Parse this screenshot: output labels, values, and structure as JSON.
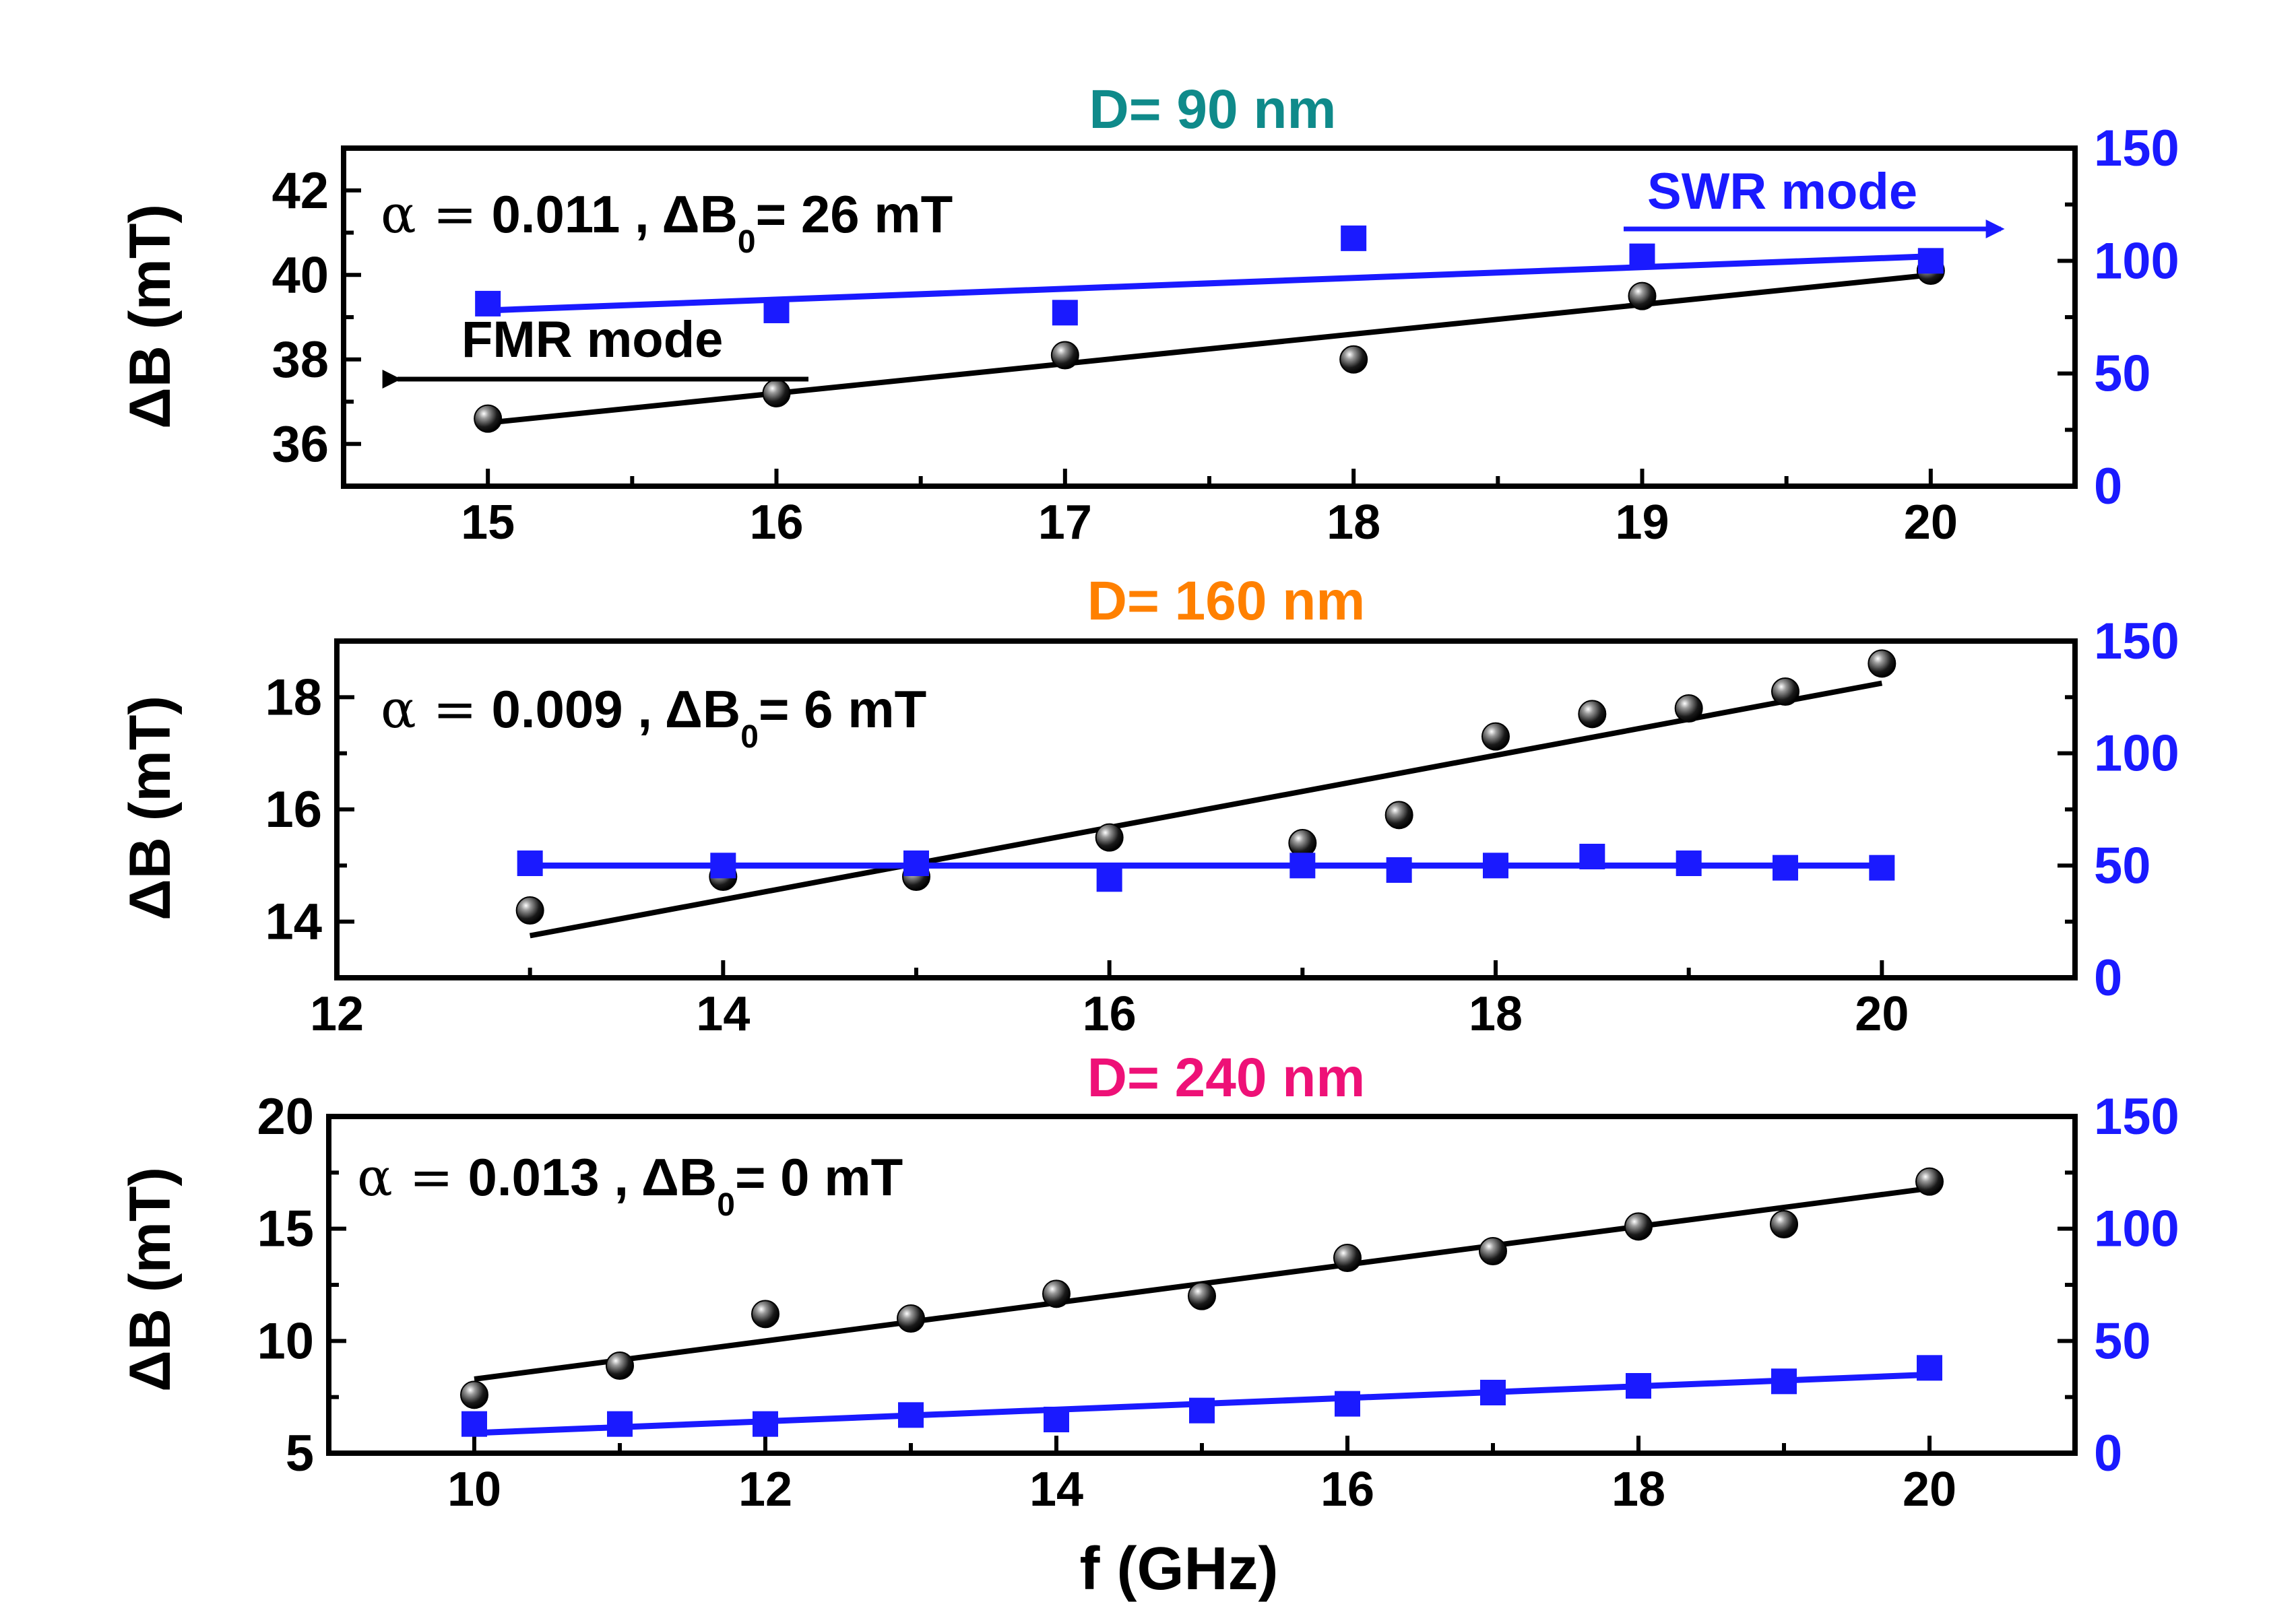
{
  "chart_data": [
    {
      "type": "scatter",
      "title": "D= 90 nm",
      "title_color": "#0f8a8a",
      "xlabel": "",
      "ylabel": "ΔB (mT)",
      "xlim": [
        14.5,
        20.5
      ],
      "ylim": [
        35,
        43
      ],
      "y2lim": [
        0,
        150
      ],
      "xticks": [
        15,
        16,
        17,
        18,
        19,
        20
      ],
      "yticks": [
        36,
        38,
        40,
        42
      ],
      "y2ticks": [
        0,
        50,
        100,
        150
      ],
      "annotation": {
        "alpha_sym": "α =",
        "alpha": "0.011 ,",
        "delta_b": "ΔB",
        "sub": "0",
        "value": "= 26 mT"
      },
      "arrow_labels": {
        "fmr": "FMR mode",
        "swr": "SWR mode"
      },
      "series": [
        {
          "name": "FMR mode",
          "axis": "left",
          "color": "#000000",
          "marker": "sphere",
          "x": [
            15,
            16,
            17,
            18,
            19,
            20
          ],
          "y": [
            36.6,
            37.2,
            38.1,
            38.0,
            39.5,
            40.1
          ],
          "fit": [
            [
              15,
              36.5
            ],
            [
              20,
              40.0
            ]
          ]
        },
        {
          "name": "SWR mode",
          "axis": "right",
          "color": "#1a1aff",
          "marker": "square",
          "x": [
            15,
            16,
            17,
            18,
            19,
            20
          ],
          "y": [
            81,
            78,
            77,
            110,
            102,
            100
          ],
          "fit": [
            [
              15,
              78
            ],
            [
              20,
              102
            ]
          ]
        }
      ]
    },
    {
      "type": "scatter",
      "title": "D= 160 nm",
      "title_color": "#ff8000",
      "xlabel": "",
      "ylabel": "ΔB (mT)",
      "xlim": [
        12,
        21
      ],
      "ylim": [
        13,
        19
      ],
      "y2lim": [
        0,
        150
      ],
      "xticks": [
        12,
        14,
        16,
        18,
        20
      ],
      "yticks": [
        14,
        16,
        18
      ],
      "y2ticks": [
        0,
        50,
        100,
        150
      ],
      "annotation": {
        "alpha_sym": "α =",
        "alpha": "0.009 ,",
        "delta_b": "ΔB",
        "sub": "0",
        "value": "= 6 mT"
      },
      "series": [
        {
          "name": "FMR",
          "axis": "left",
          "color": "#000000",
          "marker": "sphere",
          "x": [
            13,
            14,
            15,
            16,
            17,
            17.5,
            18,
            18.5,
            19,
            19.5,
            20
          ],
          "y": [
            14.2,
            14.8,
            14.8,
            15.5,
            15.4,
            15.9,
            17.3,
            17.7,
            17.8,
            18.1,
            18.6
          ],
          "fit": [
            [
              13,
              13.75
            ],
            [
              20,
              18.25
            ]
          ]
        },
        {
          "name": "SWR",
          "axis": "right",
          "color": "#1a1aff",
          "marker": "square",
          "x": [
            13,
            14,
            15,
            16,
            17,
            17.5,
            18,
            18.5,
            19,
            19.5,
            20
          ],
          "y": [
            51,
            50,
            51,
            44,
            50,
            48,
            50,
            54,
            51,
            49,
            49
          ],
          "fit": [
            [
              13,
              50
            ],
            [
              20,
              50
            ]
          ]
        }
      ]
    },
    {
      "type": "scatter",
      "title": "D= 240 nm",
      "title_color": "#ee1177",
      "xlabel": "f (GHz)",
      "ylabel": "ΔB (mT)",
      "xlim": [
        9,
        21
      ],
      "ylim": [
        5,
        20
      ],
      "y2lim": [
        0,
        150
      ],
      "xticks": [
        10,
        12,
        14,
        16,
        18,
        20
      ],
      "yticks": [
        5,
        10,
        15,
        20
      ],
      "y2ticks": [
        0,
        50,
        100,
        150
      ],
      "annotation": {
        "alpha_sym": "α =",
        "alpha": "0.013 ,",
        "delta_b": "ΔB",
        "sub": "0",
        "value": "= 0 mT"
      },
      "series": [
        {
          "name": "FMR",
          "axis": "left",
          "color": "#000000",
          "marker": "sphere",
          "x": [
            10,
            11,
            12,
            13,
            14,
            15,
            16,
            17,
            18,
            19,
            20
          ],
          "y": [
            7.6,
            8.9,
            11.2,
            11.0,
            12.1,
            12.0,
            13.7,
            14.0,
            15.1,
            15.2,
            17.1
          ],
          "fit": [
            [
              10,
              8.3
            ],
            [
              20,
              16.8
            ]
          ]
        },
        {
          "name": "SWR",
          "axis": "right",
          "color": "#1a1aff",
          "marker": "square",
          "x": [
            10,
            11,
            12,
            13,
            14,
            15,
            16,
            17,
            18,
            19,
            20
          ],
          "y": [
            13,
            13,
            13,
            17,
            15,
            19,
            22,
            27,
            30,
            32,
            38
          ],
          "fit": [
            [
              10,
              9
            ],
            [
              20,
              35
            ]
          ]
        }
      ]
    }
  ]
}
